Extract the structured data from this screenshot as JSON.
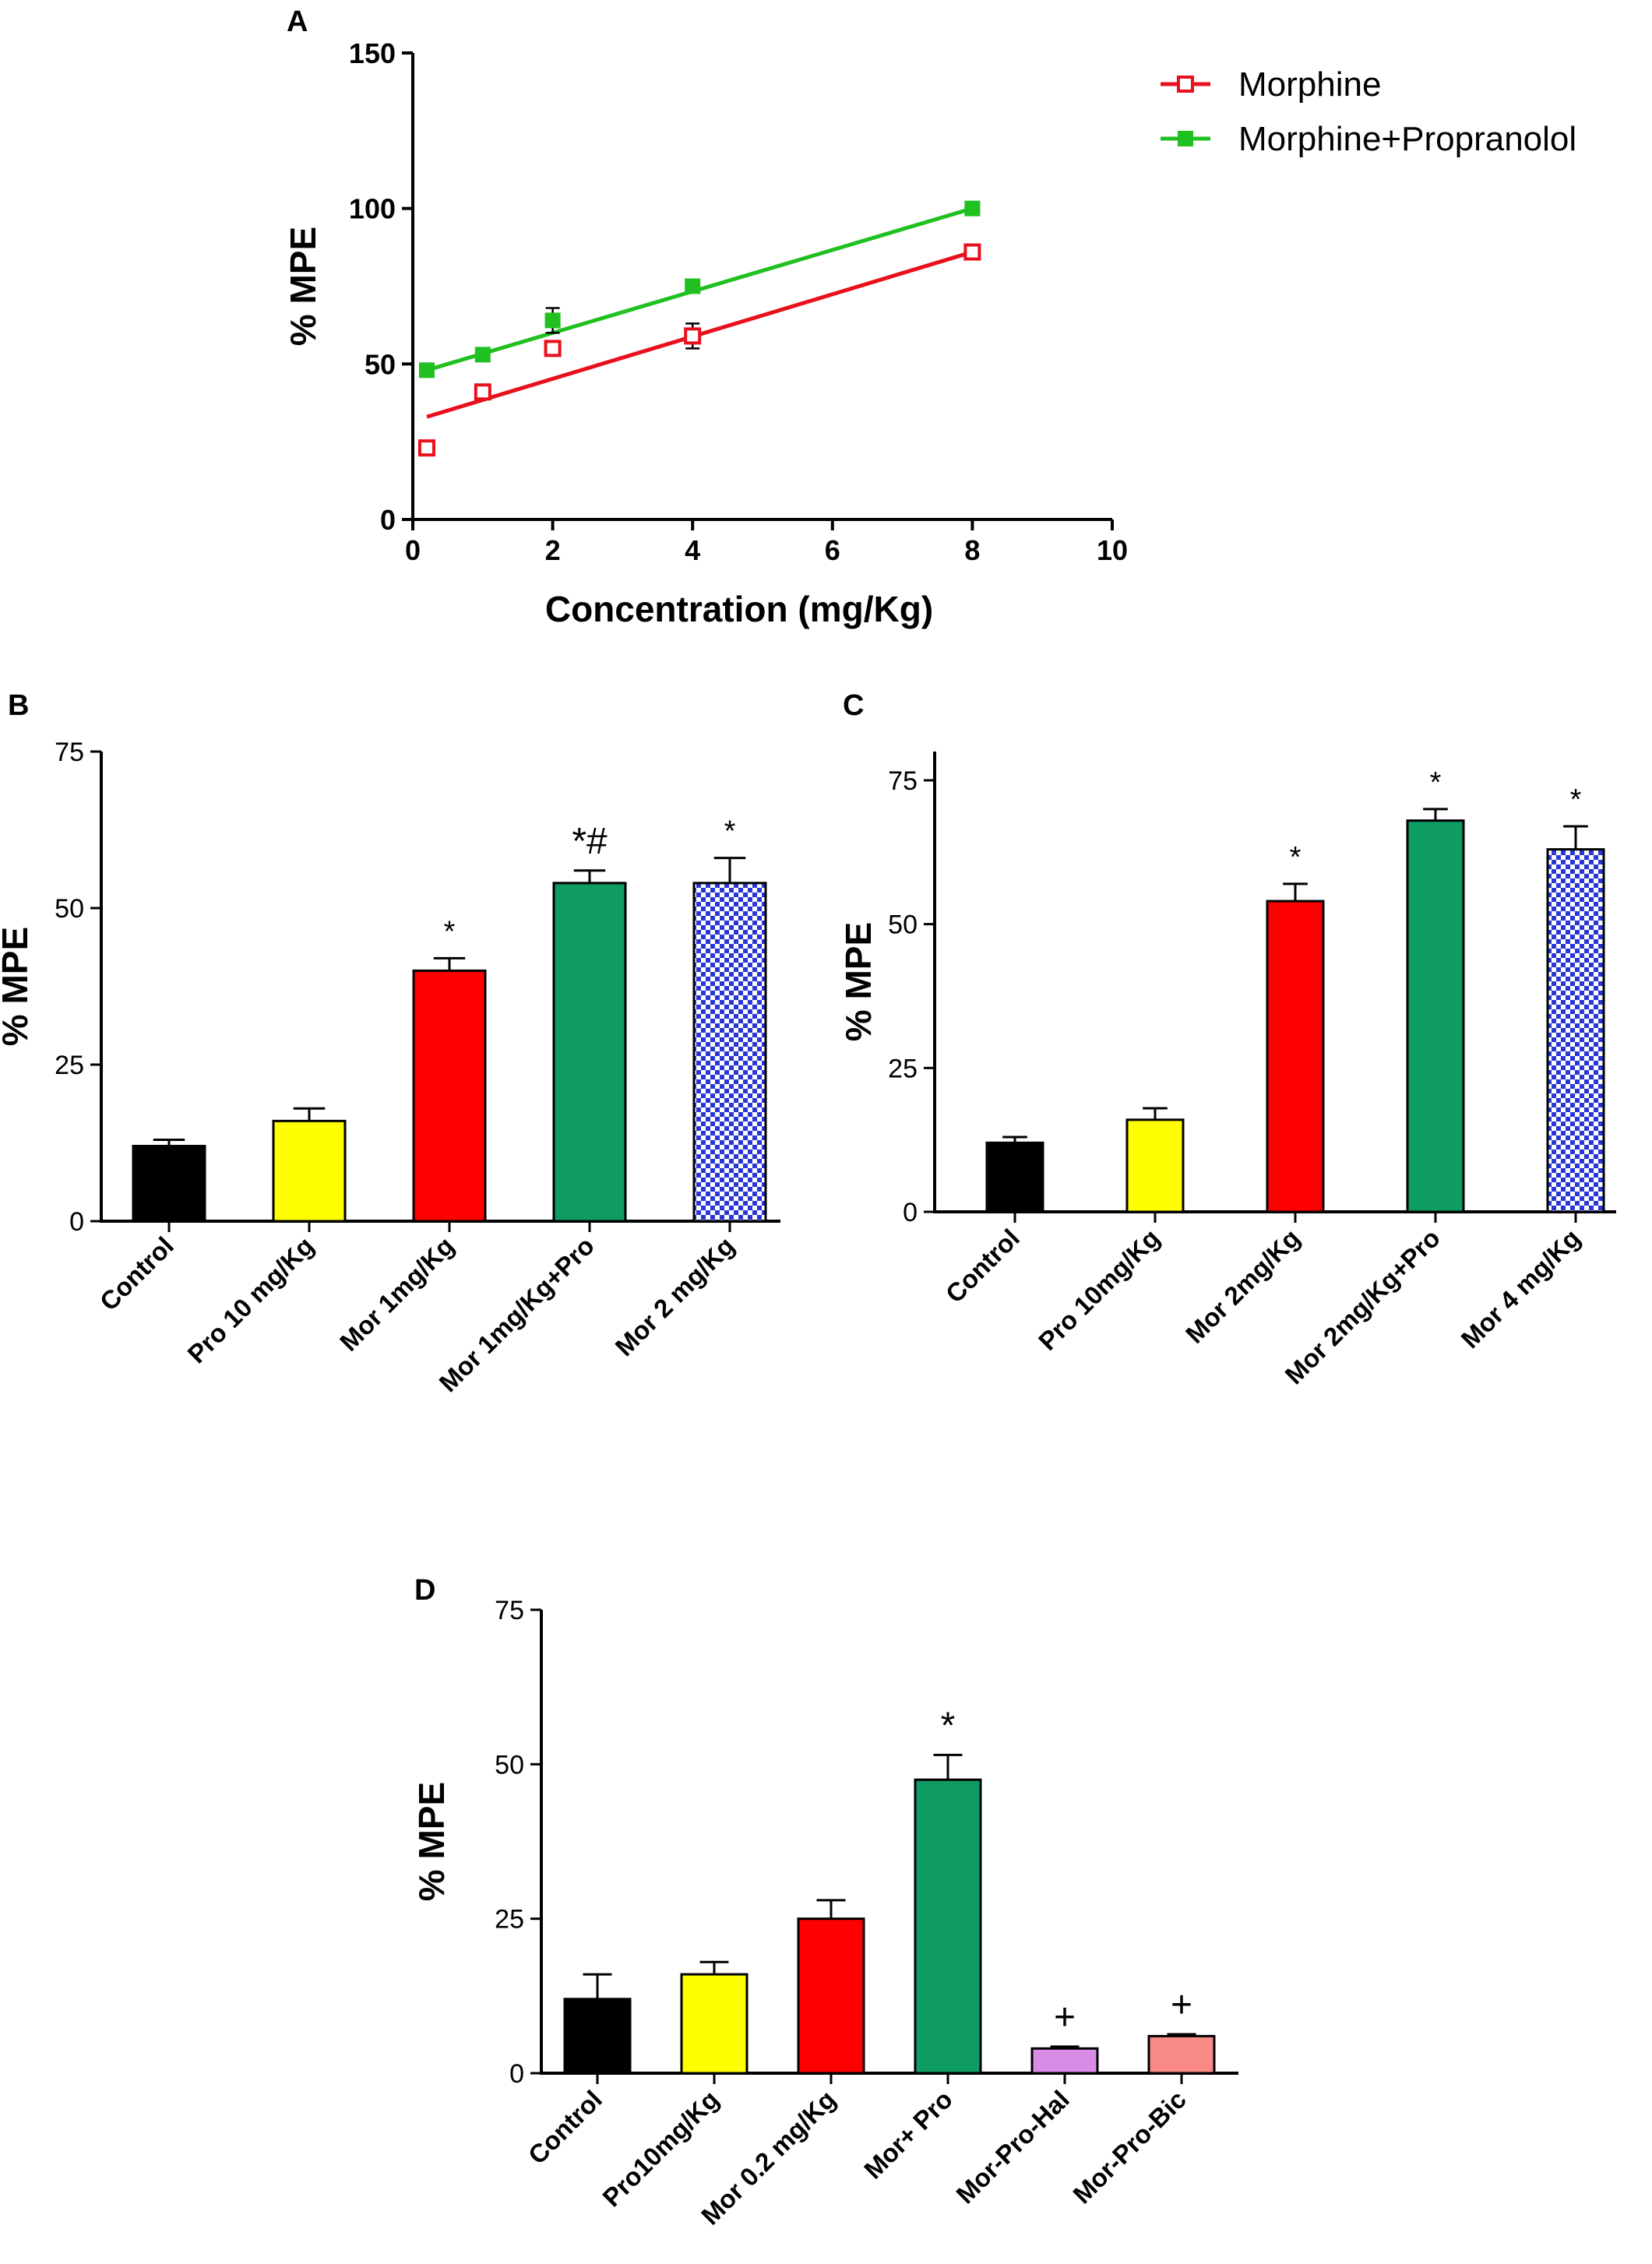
{
  "chart_data": [
    {
      "panel": "A",
      "type": "scatter",
      "title": "",
      "xlabel": "Concentration (mg/Kg)",
      "ylabel": "% MPE",
      "xlim": [
        0,
        10
      ],
      "ylim": [
        0,
        150
      ],
      "xticks": [
        "0",
        "2",
        "4",
        "6",
        "8",
        "10"
      ],
      "yticks": [
        "0",
        "50",
        "100",
        "150"
      ],
      "legend_position": "top-right",
      "series": [
        {
          "name": "Morphine",
          "color": "#e8101c",
          "marker": "open-square",
          "x": [
            0.2,
            1,
            2,
            4,
            8
          ],
          "y": [
            23,
            41,
            55,
            59,
            86
          ],
          "err": [
            0,
            0,
            0,
            4,
            0
          ],
          "fit": [
            33,
            86
          ]
        },
        {
          "name": "Morphine+Propranolol",
          "color": "#1fc01f",
          "marker": "filled-square",
          "x": [
            0.2,
            1,
            2,
            4,
            8
          ],
          "y": [
            48,
            53,
            64,
            75,
            100
          ],
          "err": [
            0,
            0,
            4,
            0,
            0
          ],
          "fit": [
            48,
            100
          ]
        }
      ]
    },
    {
      "panel": "B",
      "type": "bar",
      "ylabel": "% MPE",
      "ylim": [
        0,
        75
      ],
      "yticks": [
        "0",
        "25",
        "50",
        "75"
      ],
      "categories": [
        "Control",
        "Pro 10 mg/Kg",
        "Mor 1mg/Kg",
        "Mor 1mg/Kg+Pro",
        "Mor 2 mg/Kg"
      ],
      "values": [
        12,
        16,
        40,
        54,
        54
      ],
      "errors": [
        1,
        2,
        2,
        2,
        4
      ],
      "colors": [
        "#000000",
        "#ffff00",
        "#ff0000",
        "#0f9c64",
        "#2a36d6"
      ],
      "patterns": [
        "solid",
        "solid",
        "solid",
        "solid",
        "checker"
      ],
      "annotations": [
        "",
        "",
        "*",
        "*#",
        "*"
      ]
    },
    {
      "panel": "C",
      "type": "bar",
      "ylabel": "% MPE",
      "ylim": [
        0,
        80
      ],
      "yticks": [
        "0",
        "25",
        "50",
        "75"
      ],
      "categories": [
        "Control",
        "Pro 10mg/Kg",
        "Mor 2mg/Kg",
        "Mor 2mg/Kg+Pro",
        "Mor 4 mg/Kg"
      ],
      "values": [
        12,
        16,
        54,
        68,
        63
      ],
      "errors": [
        1,
        2,
        3,
        2,
        4
      ],
      "colors": [
        "#000000",
        "#ffff00",
        "#ff0000",
        "#0f9c64",
        "#2a36d6"
      ],
      "patterns": [
        "solid",
        "solid",
        "solid",
        "solid",
        "checker"
      ],
      "annotations": [
        "",
        "",
        "*",
        "*",
        "*"
      ]
    },
    {
      "panel": "D",
      "type": "bar",
      "ylabel": "% MPE",
      "ylim": [
        0,
        75
      ],
      "yticks": [
        "0",
        "25",
        "50",
        "75"
      ],
      "categories": [
        "Control",
        "Pro10mg/Kg",
        "Mor 0.2 mg/Kg",
        "Mor+ Pro",
        "Mor-Pro-Hal",
        "Mor-Pro-Bic"
      ],
      "values": [
        12,
        16,
        25,
        47.5,
        4,
        6
      ],
      "errors": [
        4,
        2,
        3,
        4,
        0.3,
        0.3
      ],
      "colors": [
        "#000000",
        "#ffff00",
        "#ff0000",
        "#0f9c64",
        "#d98ce6",
        "#f98a86"
      ],
      "patterns": [
        "solid",
        "solid",
        "solid",
        "solid",
        "solid",
        "solid"
      ],
      "annotations": [
        "",
        "",
        "",
        "*",
        "+",
        "+"
      ]
    }
  ]
}
